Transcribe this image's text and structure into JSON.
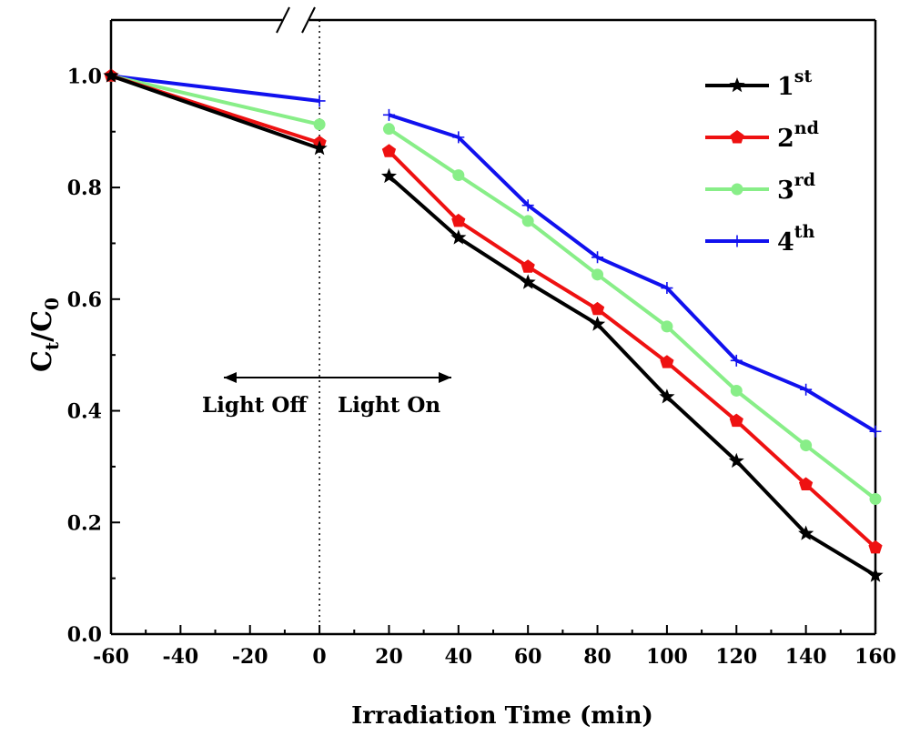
{
  "chart_data": {
    "type": "line",
    "xlabel": "Irradiation Time (min)",
    "ylabel_main": "C",
    "ylabel_sub1": "t",
    "ylabel_sep": "/C",
    "ylabel_sub2": "0",
    "xlim": [
      -60,
      160
    ],
    "ylim": [
      0.0,
      1.1
    ],
    "xticks": [
      -60,
      -40,
      -20,
      0,
      20,
      40,
      60,
      80,
      100,
      120,
      140,
      160
    ],
    "yticks": [
      0.0,
      0.2,
      0.4,
      0.6,
      0.8,
      1.0
    ],
    "xtick_labels": [
      "-60",
      "-40",
      "-20",
      "0",
      "20",
      "40",
      "60",
      "80",
      "100",
      "120",
      "140",
      "160"
    ],
    "ytick_labels": [
      "0.0",
      "0.2",
      "0.4",
      "0.6",
      "0.8",
      "1.0"
    ],
    "axis_break": "top axis break between 0 and -20 region",
    "divider_x": 0,
    "annotations": {
      "left_label": "Light Off",
      "right_label": "Light On"
    },
    "legend_position": "top-right",
    "series": [
      {
        "name": "1",
        "suffix": "st",
        "color": "#000000",
        "marker": "star",
        "dark": [
          [
            -60,
            1.0
          ],
          [
            0,
            0.87
          ]
        ],
        "light": [
          [
            20,
            0.82
          ],
          [
            40,
            0.71
          ],
          [
            60,
            0.63
          ],
          [
            80,
            0.555
          ],
          [
            100,
            0.425
          ],
          [
            120,
            0.31
          ],
          [
            140,
            0.18
          ],
          [
            160,
            0.105
          ]
        ]
      },
      {
        "name": "2",
        "suffix": "nd",
        "color": "#ee1111",
        "marker": "pentagon",
        "dark": [
          [
            -60,
            1.0
          ],
          [
            0,
            0.88
          ]
        ],
        "light": [
          [
            20,
            0.865
          ],
          [
            40,
            0.74
          ],
          [
            60,
            0.658
          ],
          [
            80,
            0.582
          ],
          [
            100,
            0.487
          ],
          [
            120,
            0.382
          ],
          [
            140,
            0.268
          ],
          [
            160,
            0.155
          ]
        ]
      },
      {
        "name": "3",
        "suffix": "rd",
        "color": "#88ee88",
        "marker": "circle",
        "dark": [
          [
            -60,
            1.0
          ],
          [
            0,
            0.913
          ]
        ],
        "light": [
          [
            20,
            0.905
          ],
          [
            40,
            0.822
          ],
          [
            60,
            0.74
          ],
          [
            80,
            0.644
          ],
          [
            100,
            0.551
          ],
          [
            120,
            0.436
          ],
          [
            140,
            0.338
          ],
          [
            160,
            0.242
          ]
        ]
      },
      {
        "name": "4",
        "suffix": "th",
        "color": "#1111ee",
        "marker": "plus",
        "dark": [
          [
            -60,
            1.0
          ],
          [
            0,
            0.955
          ]
        ],
        "light": [
          [
            20,
            0.93
          ],
          [
            40,
            0.89
          ],
          [
            60,
            0.768
          ],
          [
            80,
            0.675
          ],
          [
            100,
            0.62
          ],
          [
            120,
            0.49
          ],
          [
            140,
            0.438
          ],
          [
            160,
            0.363
          ]
        ]
      }
    ]
  }
}
